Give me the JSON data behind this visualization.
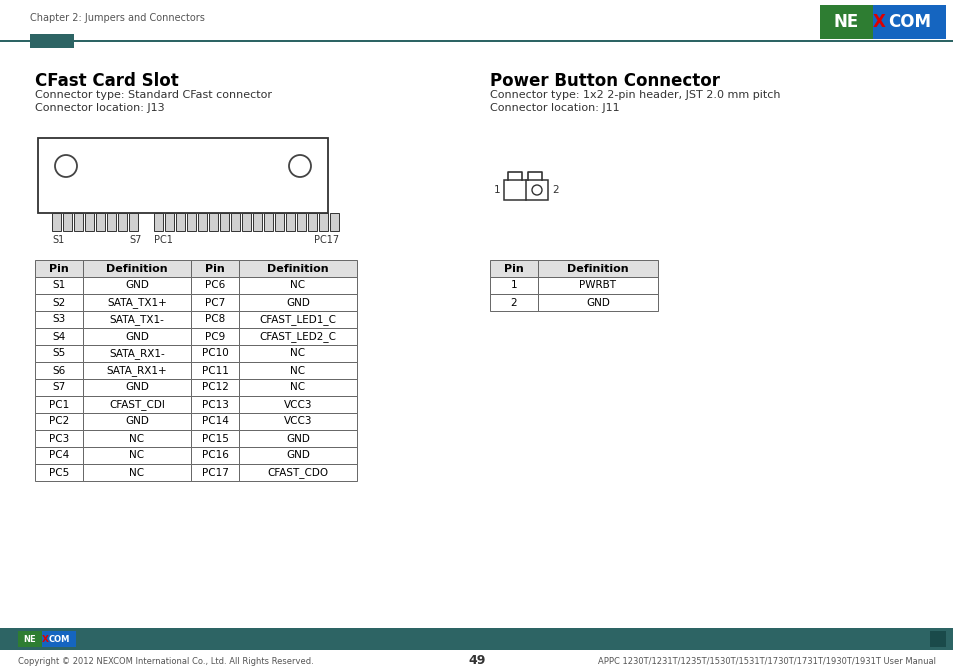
{
  "page_title": "Chapter 2: Jumpers and Connectors",
  "page_number": "49",
  "footer_text": "Copyright © 2012 NEXCOM International Co., Ltd. All Rights Reserved.",
  "footer_right": "APPC 1230T/1231T/1235T/1530T/1531T/1730T/1731T/1930T/1931T User Manual",
  "section1_title": "CFast Card Slot",
  "section1_line1": "Connector type: Standard CFast connector",
  "section1_line2": "Connector location: J13",
  "section2_title": "Power Button Connector",
  "section2_line1": "Connector type: 1x2 2-pin header, JST 2.0 mm pitch",
  "section2_line2": "Connector location: J11",
  "header_bar_color": "#2d6464",
  "nexcom_green": "#2e7d32",
  "nexcom_blue": "#1565c0",
  "table1_headers": [
    "Pin",
    "Definition",
    "Pin",
    "Definition"
  ],
  "table1_data": [
    [
      "S1",
      "GND",
      "PC6",
      "NC"
    ],
    [
      "S2",
      "SATA_TX1+",
      "PC7",
      "GND"
    ],
    [
      "S3",
      "SATA_TX1-",
      "PC8",
      "CFAST_LED1_C"
    ],
    [
      "S4",
      "GND",
      "PC9",
      "CFAST_LED2_C"
    ],
    [
      "S5",
      "SATA_RX1-",
      "PC10",
      "NC"
    ],
    [
      "S6",
      "SATA_RX1+",
      "PC11",
      "NC"
    ],
    [
      "S7",
      "GND",
      "PC12",
      "NC"
    ],
    [
      "PC1",
      "CFAST_CDI",
      "PC13",
      "VCC3"
    ],
    [
      "PC2",
      "GND",
      "PC14",
      "VCC3"
    ],
    [
      "PC3",
      "NC",
      "PC15",
      "GND"
    ],
    [
      "PC4",
      "NC",
      "PC16",
      "GND"
    ],
    [
      "PC5",
      "NC",
      "PC17",
      "CFAST_CDO"
    ]
  ],
  "table2_headers": [
    "Pin",
    "Definition"
  ],
  "table2_data": [
    [
      "1",
      "PWRBT"
    ],
    [
      "2",
      "GND"
    ]
  ],
  "bg_color": "#ffffff",
  "text_color": "#333333",
  "table_header_bg": "#e0e0e0",
  "table_border_color": "#666666",
  "title_color": "#000000",
  "teal_color": "#2d6464"
}
